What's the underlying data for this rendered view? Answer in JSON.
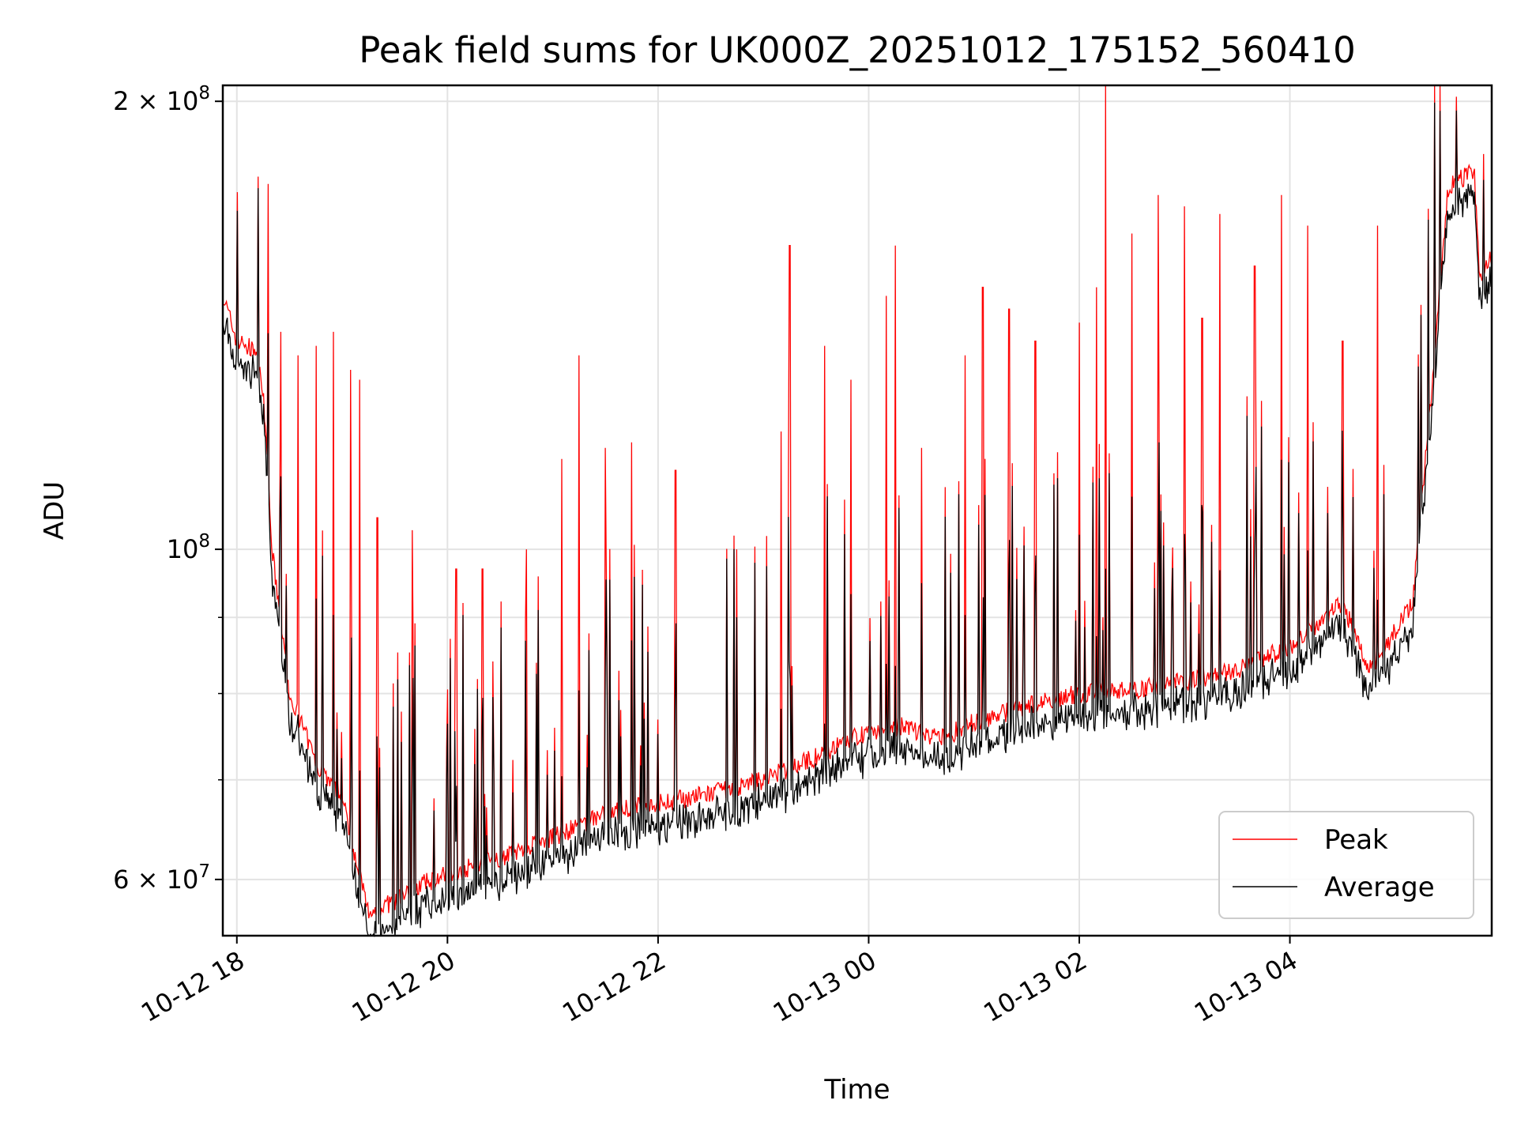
{
  "chart_data": {
    "type": "line",
    "title": "Peak field sums for UK000Z_20251012_175152_560410",
    "xlabel": "Time",
    "ylabel": "ADU",
    "y_scale": "log",
    "grid": true,
    "legend_position": "lower-right",
    "xlim": [
      "2025-10-12 17:52",
      "2025-10-13 05:55"
    ],
    "ylim": [
      55000000,
      205000000
    ],
    "x_ticks": [
      {
        "value": "2025-10-12 18:00",
        "label": "10-12 18"
      },
      {
        "value": "2025-10-12 20:00",
        "label": "10-12 20"
      },
      {
        "value": "2025-10-12 22:00",
        "label": "10-12 22"
      },
      {
        "value": "2025-10-13 00:00",
        "label": "10-13 00"
      },
      {
        "value": "2025-10-13 02:00",
        "label": "10-13 02"
      },
      {
        "value": "2025-10-13 04:00",
        "label": "10-13 04"
      }
    ],
    "y_ticks": [
      {
        "value": 200000000,
        "base": "2",
        "mult": "×",
        "pow": "10",
        "exp": "8"
      },
      {
        "value": 100000000,
        "base": "",
        "mult": "",
        "pow": "10",
        "exp": "8"
      },
      {
        "value": 60000000,
        "base": "6",
        "mult": "×",
        "pow": "10",
        "exp": "7"
      }
    ],
    "y_minor_grid": [
      70000000,
      80000000,
      90000000
    ],
    "colors": {
      "peak": "#ff0000",
      "average": "#000000"
    },
    "series": [
      {
        "name": "Peak",
        "color": "#ff0000",
        "baseline": [
          [
            "2025-10-12 17:52",
            148000000
          ],
          [
            "2025-10-12 18:00",
            138000000
          ],
          [
            "2025-10-12 18:10",
            136000000
          ],
          [
            "2025-10-12 18:15",
            128000000
          ],
          [
            "2025-10-12 18:20",
            100000000
          ],
          [
            "2025-10-12 18:30",
            80000000
          ],
          [
            "2025-10-12 18:45",
            72000000
          ],
          [
            "2025-10-12 19:00",
            68000000
          ],
          [
            "2025-10-12 19:15",
            57000000
          ],
          [
            "2025-10-12 19:30",
            58000000
          ],
          [
            "2025-10-12 19:45",
            59500000
          ],
          [
            "2025-10-12 20:00",
            60500000
          ],
          [
            "2025-10-12 20:30",
            62000000
          ],
          [
            "2025-10-12 21:00",
            64000000
          ],
          [
            "2025-10-12 21:30",
            66500000
          ],
          [
            "2025-10-12 22:00",
            67500000
          ],
          [
            "2025-10-12 22:30",
            68500000
          ],
          [
            "2025-10-12 23:00",
            70000000
          ],
          [
            "2025-10-12 23:30",
            72500000
          ],
          [
            "2025-10-13 00:00",
            75500000
          ],
          [
            "2025-10-13 00:20",
            76000000
          ],
          [
            "2025-10-13 00:40",
            74500000
          ],
          [
            "2025-10-13 01:00",
            76500000
          ],
          [
            "2025-10-13 01:30",
            78500000
          ],
          [
            "2025-10-13 02:00",
            80000000
          ],
          [
            "2025-10-13 02:30",
            80500000
          ],
          [
            "2025-10-13 03:00",
            81500000
          ],
          [
            "2025-10-13 03:30",
            83000000
          ],
          [
            "2025-10-13 04:00",
            86000000
          ],
          [
            "2025-10-13 04:30",
            92000000
          ],
          [
            "2025-10-13 04:45",
            83000000
          ],
          [
            "2025-10-13 05:00",
            88000000
          ],
          [
            "2025-10-13 05:10",
            92000000
          ],
          [
            "2025-10-13 05:20",
            125000000
          ],
          [
            "2025-10-13 05:30",
            175000000
          ],
          [
            "2025-10-13 05:45",
            180000000
          ],
          [
            "2025-10-13 05:48",
            152000000
          ],
          [
            "2025-10-13 05:55",
            157000000
          ]
        ],
        "spikes": [
          [
            "2025-10-12 18:12",
            178000000
          ],
          [
            "2025-10-12 18:18",
            176000000
          ],
          [
            "2025-10-12 18:25",
            140000000
          ],
          [
            "2025-10-12 18:35",
            135000000
          ],
          [
            "2025-10-12 18:45",
            137000000
          ],
          [
            "2025-10-12 18:55",
            140000000
          ],
          [
            "2025-10-12 19:05",
            132000000
          ],
          [
            "2025-10-12 19:10",
            130000000
          ],
          [
            "2025-10-12 19:20",
            105000000
          ],
          [
            "2025-10-12 19:40",
            103000000
          ],
          [
            "2025-10-12 20:05",
            97000000
          ],
          [
            "2025-10-12 20:20",
            97000000
          ],
          [
            "2025-10-12 20:45",
            100000000
          ],
          [
            "2025-10-12 21:05",
            115000000
          ],
          [
            "2025-10-12 21:15",
            135000000
          ],
          [
            "2025-10-12 21:30",
            117000000
          ],
          [
            "2025-10-12 21:45",
            118000000
          ],
          [
            "2025-10-12 22:10",
            113000000
          ],
          [
            "2025-10-12 22:45",
            100000000
          ],
          [
            "2025-10-12 23:10",
            120000000
          ],
          [
            "2025-10-12 23:15",
            160000000
          ],
          [
            "2025-10-12 23:35",
            137000000
          ],
          [
            "2025-10-12 23:50",
            130000000
          ],
          [
            "2025-10-13 00:10",
            148000000
          ],
          [
            "2025-10-13 00:15",
            160000000
          ],
          [
            "2025-10-13 00:30",
            117000000
          ],
          [
            "2025-10-13 00:55",
            135000000
          ],
          [
            "2025-10-13 01:05",
            150000000
          ],
          [
            "2025-10-13 01:20",
            145000000
          ],
          [
            "2025-10-13 01:35",
            138000000
          ],
          [
            "2025-10-13 02:00",
            142000000
          ],
          [
            "2025-10-13 02:10",
            150000000
          ],
          [
            "2025-10-13 02:15",
            205000000
          ],
          [
            "2025-10-13 02:30",
            163000000
          ],
          [
            "2025-10-13 02:45",
            173000000
          ],
          [
            "2025-10-13 03:00",
            170000000
          ],
          [
            "2025-10-13 03:10",
            143000000
          ],
          [
            "2025-10-13 03:20",
            168000000
          ],
          [
            "2025-10-13 03:40",
            155000000
          ],
          [
            "2025-10-13 03:55",
            173000000
          ],
          [
            "2025-10-13 04:10",
            165000000
          ],
          [
            "2025-10-13 04:30",
            138000000
          ],
          [
            "2025-10-13 04:50",
            165000000
          ]
        ]
      },
      {
        "name": "Average",
        "color": "#000000",
        "offset_factor": 0.985
      }
    ],
    "legend": [
      {
        "label": "Peak",
        "color": "#ff0000"
      },
      {
        "label": "Average",
        "color": "#000000"
      }
    ]
  }
}
